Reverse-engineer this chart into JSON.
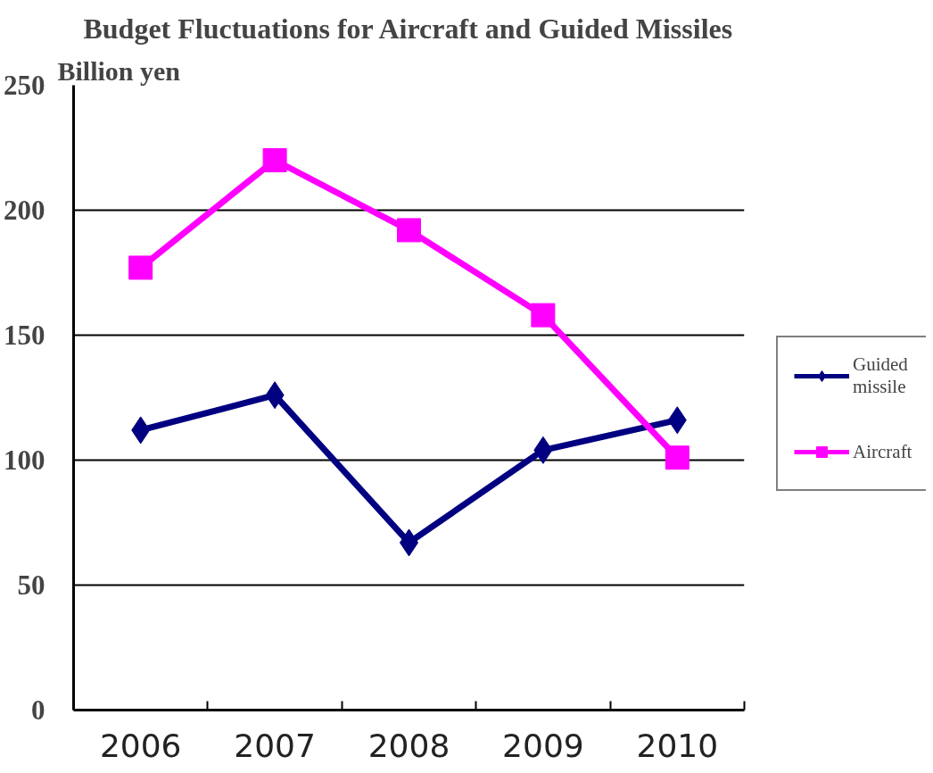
{
  "chart_data": {
    "type": "line",
    "title": "Budget Fluctuations for Aircraft and Guided Missiles",
    "ylabel": "Billion yen",
    "categories": [
      "2006",
      "2007",
      "2008",
      "2009",
      "2010"
    ],
    "series": [
      {
        "name": "Guided missile",
        "color": "#000080",
        "marker": "diamond",
        "values": [
          112,
          126,
          67,
          104,
          116
        ]
      },
      {
        "name": "Aircraft",
        "color": "#ff00ff",
        "marker": "square",
        "values": [
          177,
          220,
          192,
          158,
          101
        ]
      }
    ],
    "ylim": [
      0,
      250
    ],
    "yticks": [
      0,
      50,
      100,
      150,
      200,
      250
    ],
    "grid": "y",
    "legend": "right",
    "line_style": "solid"
  }
}
